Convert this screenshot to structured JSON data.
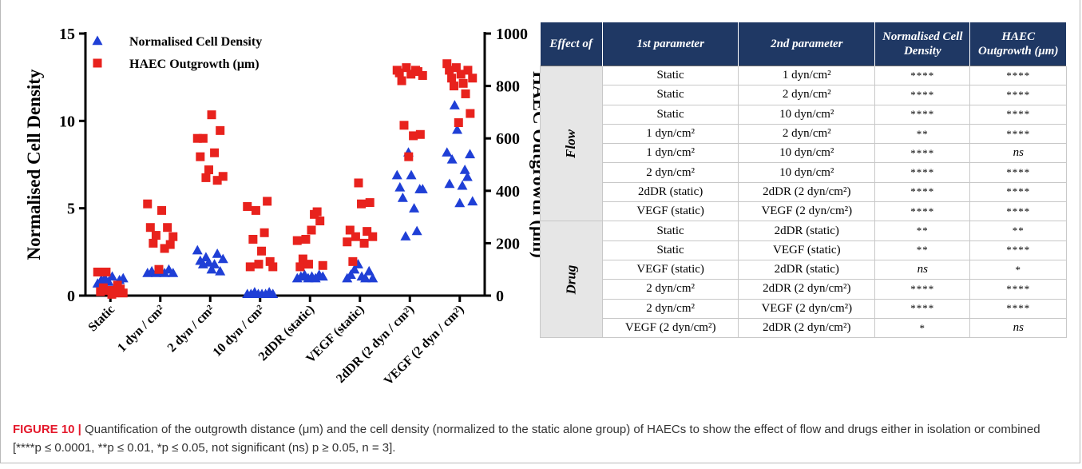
{
  "figure": {
    "label": "FIGURE 10 |",
    "caption": "Quantification of the outgrowth distance (μm) and the cell density (normalized to the static alone group) of HAECs to show the effect of flow and drugs either in isolation or combined [****p ≤ 0.0001, **p ≤ 0.01, *p ≤ 0.05, not significant (ns) p ≥ 0.05, n = 3]."
  },
  "chart_data": {
    "type": "scatter",
    "categories": [
      "Static",
      "1 dyn / cm²",
      "2 dyn / cm²",
      "10 dyn / cm²",
      "2dDR (static)",
      "VEGF (static)",
      "2dDR (2 dyn / cm²)",
      "VEGF (2 dyn / cm²)"
    ],
    "ylabel": "Normalised Cell Density",
    "ylim": [
      0,
      15
    ],
    "yticks": [
      "0",
      "5",
      "10",
      "15"
    ],
    "y2label": "HAEC Outgrowth (μm)",
    "y2lim": [
      0,
      1000
    ],
    "y2ticks": [
      "0",
      "200",
      "400",
      "600",
      "800",
      "1000"
    ],
    "legend_position": "top-left",
    "series": [
      {
        "name": "Normalised Cell Density",
        "marker": "triangle",
        "color": "#1f3fd6",
        "axis": "left",
        "points": [
          [
            0.7,
            0.9,
            1.0,
            0.8,
            1.1,
            0.5,
            0.9,
            1.0
          ],
          [
            1.3,
            1.4,
            1.3,
            1.4,
            1.3,
            1.5,
            1.3
          ],
          [
            2.6,
            2.0,
            1.8,
            2.2,
            1.9,
            1.5,
            1.8,
            2.4,
            1.4,
            2.1
          ],
          [
            0.1,
            0.1,
            0.2,
            0.1,
            0.1,
            0.1,
            0.2,
            0.1
          ],
          [
            1.0,
            1.1,
            1.2,
            1.0,
            1.1,
            1.0,
            1.2,
            1.1
          ],
          [
            1.0,
            1.2,
            1.5,
            1.8,
            1.1,
            1.0,
            1.4,
            1.0
          ],
          [
            6.9,
            6.2,
            5.6,
            3.4,
            8.2,
            6.9,
            5.0,
            3.7,
            6.1,
            6.1
          ],
          [
            8.2,
            6.4,
            7.8,
            10.9,
            9.5,
            5.3,
            6.3,
            7.2,
            6.8,
            8.1,
            5.4
          ]
        ]
      },
      {
        "name": "HAEC Outgrowth (μm)",
        "marker": "square",
        "color": "#e8221d",
        "axis": "right",
        "points": [
          [
            90,
            15,
            30,
            90,
            20,
            5,
            10,
            40,
            25,
            10
          ],
          [
            350,
            260,
            200,
            230,
            100,
            325,
            180,
            260,
            195,
            225
          ],
          [
            600,
            530,
            600,
            450,
            480,
            690,
            545,
            440,
            630,
            455
          ],
          [
            340,
            110,
            215,
            325,
            120,
            170,
            240,
            360,
            130,
            110
          ],
          [
            210,
            110,
            140,
            215,
            120,
            250,
            310,
            320,
            285,
            115
          ],
          [
            205,
            250,
            130,
            225,
            430,
            350,
            200,
            245,
            355,
            225
          ],
          [
            860,
            850,
            820,
            650,
            870,
            530,
            845,
            610,
            860,
            855,
            615,
            840
          ],
          [
            885,
            860,
            830,
            800,
            870,
            660,
            845,
            810,
            770,
            860,
            695,
            830
          ]
        ]
      }
    ]
  },
  "table": {
    "headers": [
      "Effect of",
      "1st parameter",
      "2nd parameter",
      "Normalised Cell Density",
      "HAEC Outgrowth (μm)"
    ],
    "groups": [
      {
        "name": "Flow",
        "rows": [
          [
            "Static",
            "1 dyn/cm²",
            "****",
            "****"
          ],
          [
            "Static",
            "2 dyn/cm²",
            "****",
            "****"
          ],
          [
            "Static",
            "10 dyn/cm²",
            "****",
            "****"
          ],
          [
            "1 dyn/cm²",
            "2 dyn/cm²",
            "**",
            "****"
          ],
          [
            "1 dyn/cm²",
            "10 dyn/cm²",
            "****",
            "ns"
          ],
          [
            "2 dyn/cm²",
            "10 dyn/cm²",
            "****",
            "****"
          ],
          [
            "2dDR (static)",
            "2dDR (2 dyn/cm²)",
            "****",
            "****"
          ],
          [
            "VEGF (static)",
            "VEGF (2 dyn/cm²)",
            "****",
            "****"
          ]
        ]
      },
      {
        "name": "Drug",
        "rows": [
          [
            "Static",
            "2dDR (static)",
            "**",
            "**"
          ],
          [
            "Static",
            "VEGF (static)",
            "**",
            "****"
          ],
          [
            "VEGF (static)",
            "2dDR (static)",
            "ns",
            "*"
          ],
          [
            "2 dyn/cm²",
            "2dDR (2 dyn/cm²)",
            "****",
            "****"
          ],
          [
            "2 dyn/cm²",
            "VEGF (2 dyn/cm²)",
            "****",
            "****"
          ],
          [
            "VEGF (2 dyn/cm²)",
            "2dDR (2 dyn/cm²)",
            "*",
            "ns"
          ]
        ]
      }
    ]
  }
}
